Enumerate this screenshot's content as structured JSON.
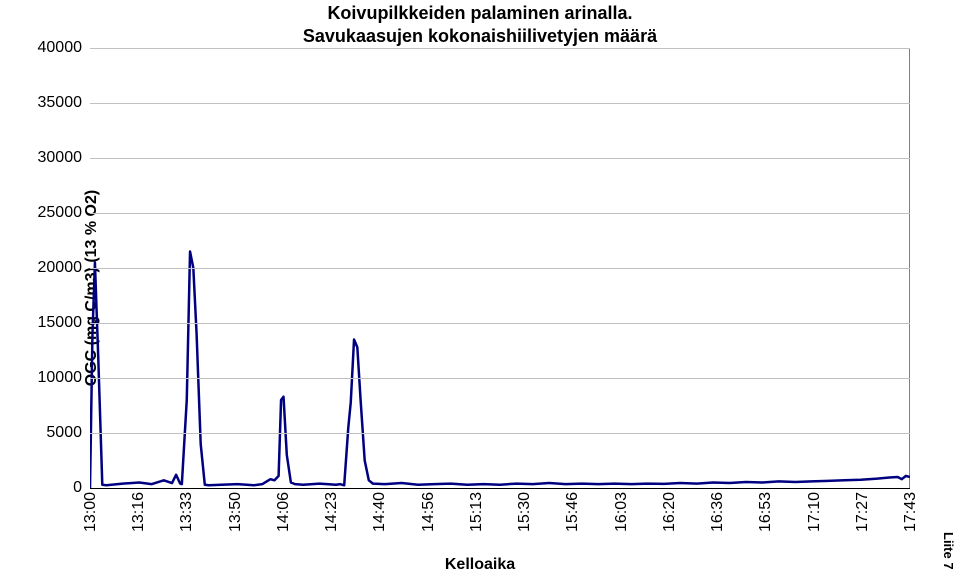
{
  "chart": {
    "type": "line",
    "title_line1": "Koivupilkkeiden palaminen arinalla.",
    "title_line2": "Savukaasujen kokonaishiilivetyjen määrä",
    "title_fontsize": 18,
    "ylabel": "OGC (mg C/m3) (13 % O2)",
    "xlabel": "Kelloaika",
    "label_fontsize": 16,
    "background_color": "#ffffff",
    "grid_color": "#c0c0c0",
    "axis_color": "#000000",
    "border_color": "#808080",
    "line_color": "#000080",
    "line_width": 2.5,
    "ylim": [
      0,
      40000
    ],
    "ytick_step": 5000,
    "yticks": [
      0,
      5000,
      10000,
      15000,
      20000,
      25000,
      30000,
      35000,
      40000
    ],
    "xticks": [
      "13:00",
      "13:16",
      "13:33",
      "13:50",
      "14:06",
      "14:23",
      "14:40",
      "14:56",
      "15:13",
      "15:30",
      "15:46",
      "16:03",
      "16:20",
      "16:36",
      "16:53",
      "17:10",
      "17:27",
      "17:43"
    ],
    "xtick_rotation": -90,
    "series": [
      {
        "name": "OGC",
        "color": "#000080",
        "points": [
          [
            0.0,
            0
          ],
          [
            0.003,
            14000
          ],
          [
            0.006,
            20500
          ],
          [
            0.01,
            12000
          ],
          [
            0.015,
            300
          ],
          [
            0.02,
            250
          ],
          [
            0.04,
            400
          ],
          [
            0.06,
            500
          ],
          [
            0.075,
            350
          ],
          [
            0.09,
            700
          ],
          [
            0.1,
            450
          ],
          [
            0.105,
            1200
          ],
          [
            0.11,
            400
          ],
          [
            0.112,
            350
          ],
          [
            0.118,
            8000
          ],
          [
            0.122,
            21500
          ],
          [
            0.126,
            20000
          ],
          [
            0.13,
            14000
          ],
          [
            0.135,
            4000
          ],
          [
            0.14,
            300
          ],
          [
            0.145,
            250
          ],
          [
            0.16,
            300
          ],
          [
            0.18,
            350
          ],
          [
            0.2,
            250
          ],
          [
            0.21,
            350
          ],
          [
            0.22,
            800
          ],
          [
            0.225,
            700
          ],
          [
            0.23,
            1100
          ],
          [
            0.233,
            8000
          ],
          [
            0.236,
            8300
          ],
          [
            0.24,
            3000
          ],
          [
            0.245,
            500
          ],
          [
            0.25,
            350
          ],
          [
            0.26,
            300
          ],
          [
            0.28,
            400
          ],
          [
            0.3,
            300
          ],
          [
            0.305,
            350
          ],
          [
            0.31,
            250
          ],
          [
            0.315,
            5500
          ],
          [
            0.318,
            7800
          ],
          [
            0.322,
            13500
          ],
          [
            0.326,
            12800
          ],
          [
            0.33,
            8000
          ],
          [
            0.335,
            2500
          ],
          [
            0.34,
            700
          ],
          [
            0.345,
            400
          ],
          [
            0.36,
            350
          ],
          [
            0.38,
            450
          ],
          [
            0.4,
            300
          ],
          [
            0.42,
            350
          ],
          [
            0.44,
            400
          ],
          [
            0.46,
            300
          ],
          [
            0.48,
            350
          ],
          [
            0.5,
            300
          ],
          [
            0.52,
            400
          ],
          [
            0.54,
            350
          ],
          [
            0.56,
            450
          ],
          [
            0.58,
            350
          ],
          [
            0.6,
            400
          ],
          [
            0.62,
            350
          ],
          [
            0.64,
            400
          ],
          [
            0.66,
            350
          ],
          [
            0.68,
            400
          ],
          [
            0.7,
            380
          ],
          [
            0.72,
            450
          ],
          [
            0.74,
            400
          ],
          [
            0.76,
            500
          ],
          [
            0.78,
            450
          ],
          [
            0.8,
            550
          ],
          [
            0.82,
            500
          ],
          [
            0.84,
            600
          ],
          [
            0.86,
            550
          ],
          [
            0.88,
            600
          ],
          [
            0.9,
            650
          ],
          [
            0.92,
            700
          ],
          [
            0.94,
            750
          ],
          [
            0.96,
            850
          ],
          [
            0.975,
            950
          ],
          [
            0.985,
            1000
          ],
          [
            0.99,
            800
          ],
          [
            0.995,
            1100
          ],
          [
            1.0,
            1000
          ]
        ]
      }
    ],
    "annotation_right": "Liite 7"
  }
}
